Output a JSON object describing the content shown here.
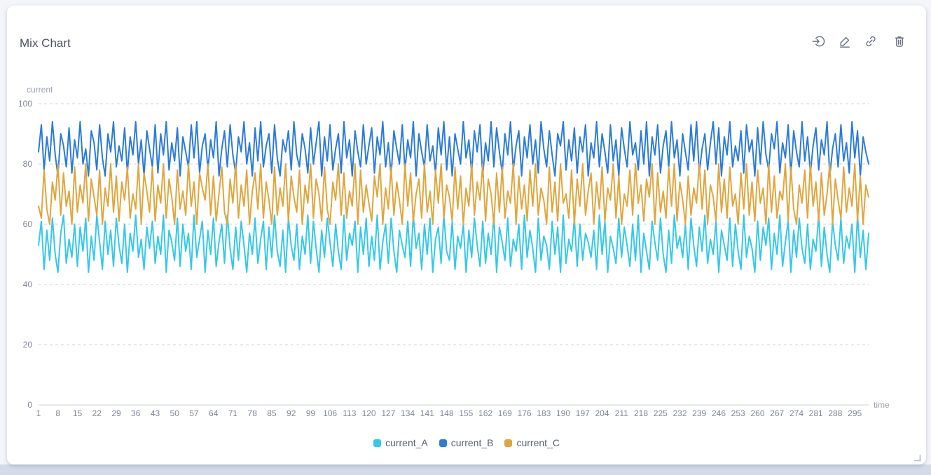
{
  "header": {
    "title": "Mix Chart",
    "icons": [
      "enter-icon",
      "edit-icon",
      "link-icon",
      "trash-icon"
    ]
  },
  "ui": {
    "resize_handle_icon": "resize-corner-icon",
    "card_background": "#ffffff",
    "page_background_top": "#f3f5fa",
    "page_background_bottom": "#d3dae8",
    "grid_line_color": "#ced3dc",
    "axis_line_color": "#ccd1db",
    "tick_text_color": "#7f8696",
    "axis_name_color": "#9aa1b1"
  },
  "chart_data": {
    "type": "line",
    "title": "Mix Chart",
    "xlabel": "time",
    "ylabel": "current",
    "ylim": [
      0,
      100
    ],
    "y_ticks": [
      0,
      20,
      40,
      60,
      80,
      100
    ],
    "x_tick_interval": 7,
    "x_tick_labels": [
      "1",
      "8",
      "15",
      "22",
      "29",
      "36",
      "43",
      "50",
      "57",
      "64",
      "71",
      "78",
      "85",
      "92",
      "99",
      "106",
      "113",
      "120",
      "127",
      "134",
      "141",
      "148",
      "155",
      "162",
      "169",
      "176",
      "183",
      "190",
      "197",
      "204",
      "211",
      "218",
      "225",
      "232",
      "239",
      "246",
      "253",
      "260",
      "267",
      "274",
      "281",
      "288",
      "295"
    ],
    "grid": "dashed-horizontal",
    "legend_position": "bottom",
    "series": [
      {
        "name": "current_A",
        "color": "#35c8e8",
        "values": [
          53,
          61,
          45,
          58,
          48,
          62,
          50,
          44,
          57,
          63,
          47,
          55,
          49,
          60,
          46,
          59,
          51,
          62,
          44,
          56,
          48,
          63,
          54,
          45,
          61,
          50,
          58,
          46,
          62,
          53,
          47,
          60,
          44,
          57,
          51,
          63,
          49,
          55,
          45,
          59,
          52,
          61,
          47,
          56,
          50,
          63,
          44,
          58,
          54,
          48,
          62,
          46,
          60,
          51,
          57,
          45,
          63,
          49,
          55,
          61,
          44,
          58,
          50,
          62,
          46,
          54,
          60,
          47,
          63,
          52,
          45,
          59,
          48,
          61,
          53,
          44,
          57,
          50,
          62,
          47,
          55,
          61,
          45,
          59,
          49,
          63,
          51,
          46,
          58,
          44,
          62,
          53,
          48,
          60,
          45,
          56,
          50,
          63,
          47,
          61,
          52,
          44,
          58,
          49,
          62,
          54,
          46,
          60,
          51,
          45,
          63,
          48,
          57,
          53,
          61,
          44,
          59,
          50,
          62,
          46,
          56,
          48,
          63,
          45,
          54,
          60,
          47,
          62,
          51,
          44,
          58,
          53,
          49,
          61,
          46,
          63,
          52,
          57,
          45,
          60,
          50,
          62,
          44,
          55,
          59,
          47,
          63,
          51,
          48,
          61,
          45,
          56,
          52,
          60,
          44,
          58,
          49,
          62,
          53,
          46,
          61,
          47,
          57,
          50,
          63,
          44,
          59,
          54,
          48,
          62,
          46,
          55,
          51,
          60,
          45,
          63,
          49,
          58,
          52,
          44,
          62,
          48,
          56,
          53,
          45,
          61,
          50,
          59,
          44,
          63,
          47,
          55,
          51,
          62,
          46,
          60,
          48,
          57,
          54,
          49,
          58,
          45,
          63,
          50,
          61,
          44,
          56,
          52,
          47,
          62,
          49,
          59,
          53,
          46,
          60,
          48,
          63,
          44,
          57,
          51,
          45,
          61,
          54,
          48,
          62,
          50,
          44,
          58,
          47,
          63,
          52,
          56,
          49,
          60,
          45,
          62,
          53,
          46,
          59,
          51,
          63,
          47,
          55,
          50,
          61,
          44,
          58,
          53,
          48,
          62,
          46,
          60,
          51,
          45,
          63,
          49,
          56,
          52,
          44,
          61,
          48,
          59,
          53,
          62,
          45,
          57,
          50,
          63,
          46,
          54,
          61,
          44,
          58,
          49,
          62,
          52,
          47,
          60,
          45,
          55,
          51,
          63,
          46,
          59,
          50,
          44,
          61,
          53,
          48,
          62,
          47,
          56,
          52,
          60,
          44,
          63,
          49,
          58,
          45,
          57
        ]
      },
      {
        "name": "current_B",
        "color": "#2b7bd9",
        "values": [
          84,
          93,
          78,
          89,
          81,
          94,
          83,
          76,
          90,
          86,
          79,
          92,
          77,
          88,
          82,
          94,
          80,
          85,
          76,
          91,
          87,
          78,
          93,
          82,
          76,
          90,
          84,
          94,
          79,
          86,
          81,
          92,
          77,
          89,
          83,
          94,
          80,
          88,
          76,
          91,
          85,
          79,
          93,
          77,
          90,
          83,
          94,
          78,
          87,
          81,
          92,
          76,
          89,
          84,
          79,
          93,
          82,
          94,
          77,
          86,
          90,
          78,
          88,
          82,
          94,
          76,
          85,
          91,
          79,
          93,
          83,
          77,
          89,
          84,
          94,
          80,
          87,
          76,
          92,
          81,
          94,
          79,
          86,
          90,
          77,
          93,
          82,
          76,
          88,
          84,
          91,
          78,
          94,
          83,
          79,
          90,
          85,
          77,
          92,
          80,
          87,
          94,
          76,
          89,
          81,
          93,
          78,
          85,
          90,
          77,
          94,
          82,
          88,
          76,
          91,
          84,
          79,
          93,
          80,
          86,
          92,
          77,
          89,
          83,
          94,
          79,
          87,
          76,
          91,
          85,
          80,
          93,
          78,
          88,
          82,
          94,
          76,
          90,
          84,
          79,
          93,
          81,
          86,
          77,
          92,
          83,
          94,
          78,
          89,
          76,
          90,
          85,
          80,
          94,
          82,
          88,
          77,
          91,
          84,
          93,
          76,
          87,
          81,
          94,
          79,
          92,
          84,
          77,
          90,
          83,
          94,
          78,
          86,
          91,
          76,
          89,
          82,
          93,
          80,
          88,
          77,
          94,
          85,
          79,
          91,
          83,
          76,
          90,
          86,
          94,
          78,
          88,
          81,
          92,
          77,
          89,
          84,
          93,
          76,
          87,
          82,
          94,
          79,
          90,
          84,
          77,
          93,
          81,
          88,
          76,
          92,
          85,
          79,
          94,
          83,
          87,
          78,
          91,
          80,
          94,
          76,
          89,
          83,
          93,
          77,
          86,
          91,
          79,
          94,
          82,
          88,
          76,
          90,
          84,
          78,
          93,
          81,
          94,
          77,
          85,
          90,
          78,
          87,
          94,
          80,
          92,
          76,
          89,
          83,
          94,
          79,
          86,
          81,
          91,
          77,
          93,
          84,
          88,
          76,
          92,
          80,
          94,
          83,
          78,
          90,
          85,
          94,
          77,
          87,
          82,
          93,
          76,
          91,
          84,
          79,
          94,
          81,
          89,
          77,
          86,
          92,
          78,
          88,
          83,
          94,
          76,
          85,
          90,
          79,
          93,
          81,
          87,
          77,
          94,
          82,
          91,
          76,
          89,
          84,
          80
        ]
      },
      {
        "name": "current_C",
        "color": "#dfa63e",
        "values": [
          66,
          62,
          78,
          65,
          60,
          74,
          68,
          80,
          63,
          77,
          66,
          71,
          60,
          79,
          64,
          73,
          67,
          80,
          61,
          75,
          69,
          63,
          78,
          60,
          72,
          66,
          80,
          64,
          76,
          61,
          74,
          68,
          79,
          62,
          70,
          65,
          80,
          60,
          77,
          71,
          64,
          79,
          61,
          73,
          67,
          80,
          62,
          75,
          69,
          60,
          78,
          65,
          71,
          63,
          80,
          66,
          74,
          60,
          77,
          72,
          68,
          80,
          63,
          76,
          61,
          70,
          79,
          64,
          60,
          75,
          67,
          80,
          62,
          73,
          66,
          78,
          60,
          71,
          77,
          65,
          80,
          62,
          74,
          68,
          60,
          79,
          63,
          72,
          66,
          80,
          61,
          76,
          69,
          64,
          78,
          60,
          73,
          67,
          80,
          62,
          75,
          70,
          61,
          79,
          65,
          60,
          74,
          68,
          80,
          63,
          77,
          62,
          71,
          66,
          80,
          60,
          78,
          64,
          73,
          67,
          61,
          76,
          69,
          80,
          60,
          72,
          65,
          79,
          63,
          74,
          68,
          60,
          80,
          66,
          77,
          61,
          70,
          75,
          62,
          80,
          64,
          71,
          60,
          78,
          67,
          80,
          62,
          73,
          69,
          61,
          79,
          65,
          76,
          60,
          72,
          66,
          80,
          63,
          74,
          68,
          80,
          61,
          75,
          70,
          60,
          77,
          64,
          79,
          62,
          71,
          67,
          80,
          60,
          76,
          65,
          73,
          61,
          78,
          66,
          80,
          63,
          72,
          68,
          60,
          79,
          64,
          74,
          61,
          80,
          67,
          70,
          62,
          78,
          60,
          75,
          66,
          80,
          63,
          71,
          77,
          60,
          74,
          65,
          79,
          61,
          72,
          68,
          80,
          62,
          76,
          60,
          70,
          66,
          78,
          63,
          80,
          67,
          73,
          61,
          75,
          69,
          80,
          60,
          77,
          64,
          71,
          62,
          79,
          66,
          80,
          61,
          74,
          68,
          60,
          76,
          63,
          72,
          67,
          80,
          65,
          78,
          60,
          73,
          69,
          61,
          80,
          64,
          75,
          62,
          79,
          66,
          70,
          60,
          77,
          65,
          80,
          63,
          74,
          61,
          78,
          67,
          72,
          60,
          80,
          64,
          76,
          62,
          71,
          68,
          80,
          61,
          79,
          65,
          60,
          73,
          67,
          78,
          62,
          80,
          66,
          74,
          61,
          77,
          63,
          70,
          80,
          60,
          75,
          68,
          62,
          79,
          64,
          72,
          66,
          80,
          61,
          76,
          60,
          73,
          69
        ]
      }
    ]
  }
}
